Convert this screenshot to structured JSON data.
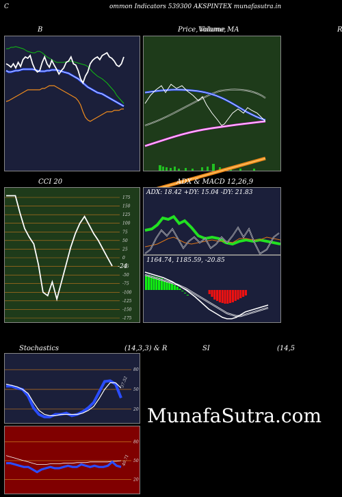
{
  "header": {
    "left": "C",
    "text": "ommon  Indicators 539300  AKSPINTEX  munafasutra.in"
  },
  "panels": {
    "bollinger": {
      "title": "B"
    },
    "price": {
      "title_a": "Price,",
      "title_b": "Volume,",
      "title_c": "MA",
      "title_d": "Volume"
    },
    "right_edge": {
      "label": "R"
    },
    "cci": {
      "title": "CCI 20",
      "current": "-24",
      "ticks": [
        "175",
        "150",
        "125",
        "100",
        "75",
        "50",
        "25",
        "0",
        "-25",
        "-50",
        "-75",
        "-100",
        "-125",
        "-150",
        "-175"
      ]
    },
    "adx": {
      "title": "ADX   & MACD 12,26,9",
      "readout": "ADX: 18.42  +DY: 15.04  -DY: 21.83"
    },
    "macd": {
      "readout": "1164.74,   1185.59,  -20.85"
    },
    "stoch": {
      "title_a": "Stochastics",
      "title_b": "(14,3,3) & R",
      "ticks": [
        "80",
        "50",
        "20"
      ],
      "current": "37.52"
    },
    "rsi": {
      "title_a": "SI",
      "title_b": "(14,5",
      "ticks": [
        "80",
        "50",
        "20"
      ],
      "current": "40.71"
    }
  },
  "watermark": "MunafaSutra.com",
  "colors": {
    "bg_blue": "#1b1f3a",
    "bg_green": "#1e3b1a",
    "bg_red": "#800000",
    "grid_orange": "#c8781e"
  },
  "chart_data": [
    {
      "type": "line",
      "name": "bollinger",
      "series": [
        {
          "name": "price",
          "values": [
            30,
            32,
            35,
            30,
            36,
            28,
            34,
            24,
            20,
            22,
            18,
            30,
            38,
            42,
            40,
            28,
            20,
            30,
            35,
            25,
            32,
            38,
            45,
            40,
            36,
            28,
            26,
            20,
            30,
            32,
            40,
            52,
            58,
            48,
            42,
            30,
            25,
            22,
            20,
            24,
            18,
            16,
            14,
            20,
            22,
            26,
            32,
            34,
            30,
            20
          ]
        },
        {
          "name": "upper",
          "values": [
            8,
            8,
            6,
            6,
            5,
            6,
            7,
            8,
            10,
            12,
            13,
            14,
            14,
            12,
            12,
            14,
            17,
            20,
            22,
            24,
            26,
            28,
            28,
            28,
            28,
            27,
            27,
            26,
            27,
            28,
            29,
            30,
            31,
            32,
            34,
            38,
            42,
            45,
            48,
            50,
            52,
            55,
            58,
            62,
            66,
            70,
            76,
            80,
            84,
            88
          ]
        },
        {
          "name": "middle",
          "values": [
            40,
            42,
            42,
            41,
            40,
            40,
            39,
            38,
            38,
            38,
            38,
            38,
            39,
            40,
            41,
            41,
            41,
            40,
            40,
            39,
            39,
            39,
            40,
            41,
            42,
            43,
            44,
            46,
            48,
            50,
            52,
            55,
            58,
            61,
            64,
            66,
            68,
            70,
            72,
            73,
            74,
            76,
            78,
            80,
            82,
            84,
            86,
            88,
            90,
            92
          ]
        },
        {
          "name": "lower",
          "values": [
            85,
            84,
            82,
            80,
            78,
            76,
            74,
            72,
            70,
            68,
            68,
            68,
            68,
            68,
            68,
            66,
            66,
            64,
            62,
            62,
            62,
            64,
            66,
            68,
            70,
            72,
            74,
            76,
            78,
            80,
            84,
            90,
            100,
            108,
            112,
            114,
            112,
            110,
            108,
            106,
            104,
            102,
            100,
            100,
            100,
            98,
            98,
            98,
            96,
            96
          ]
        }
      ]
    },
    {
      "type": "line",
      "name": "cci",
      "ylim": [
        -175,
        175
      ],
      "values": [
        180,
        180,
        180,
        130,
        85,
        60,
        40,
        -20,
        -100,
        -110,
        -70,
        -120,
        -70,
        -20,
        30,
        70,
        100,
        120,
        95,
        70,
        50,
        25,
        0,
        -24
      ]
    },
    {
      "type": "line",
      "name": "stochastics",
      "ylim": [
        0,
        100
      ],
      "series": [
        {
          "name": "%K",
          "values": [
            55,
            55,
            52,
            50,
            40,
            22,
            12,
            8,
            8,
            12,
            12,
            14,
            10,
            12,
            16,
            22,
            30,
            46,
            62,
            63,
            58,
            37
          ]
        },
        {
          "name": "%D",
          "values": [
            58,
            56,
            54,
            50,
            44,
            30,
            18,
            12,
            10,
            10,
            12,
            12,
            12,
            12,
            14,
            18,
            24,
            36,
            50,
            60,
            60,
            52
          ]
        }
      ]
    },
    {
      "type": "line",
      "name": "rsi",
      "ylim": [
        0,
        100
      ],
      "series": [
        {
          "name": "rsi",
          "values": [
            46,
            46,
            44,
            42,
            40,
            40,
            36,
            32,
            36,
            38,
            40,
            38,
            38,
            40,
            42,
            40,
            40,
            44,
            42,
            40,
            42,
            40,
            40,
            42,
            48,
            42,
            40
          ]
        },
        {
          "name": "line",
          "values": [
            58,
            56,
            54,
            52,
            50,
            48,
            46,
            44,
            44,
            44,
            45,
            45,
            45,
            46,
            46,
            46,
            47,
            47,
            47,
            48,
            48,
            48,
            48,
            48,
            49,
            49,
            50
          ]
        }
      ]
    }
  ]
}
